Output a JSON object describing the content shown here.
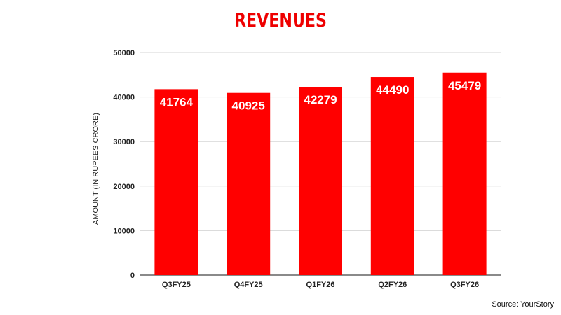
{
  "chart_data": {
    "type": "bar",
    "title": "REVENUES",
    "ylabel": "AMOUNT (IN RUPEES CRORE)",
    "xlabel": "",
    "categories": [
      "Q3FY25",
      "Q4FY25",
      "Q1FY26",
      "Q2FY26",
      "Q3FY26"
    ],
    "values": [
      41764,
      40925,
      42279,
      44490,
      45479
    ],
    "data_labels": [
      "41764",
      "40925",
      "42279",
      "44490",
      "45479"
    ],
    "ylim": [
      0,
      50000
    ],
    "yticks": [
      0,
      10000,
      20000,
      30000,
      40000,
      50000
    ],
    "grid": true,
    "bar_color": "#ff0000",
    "title_color": "#ee0000",
    "source": "Source: YourStory"
  }
}
